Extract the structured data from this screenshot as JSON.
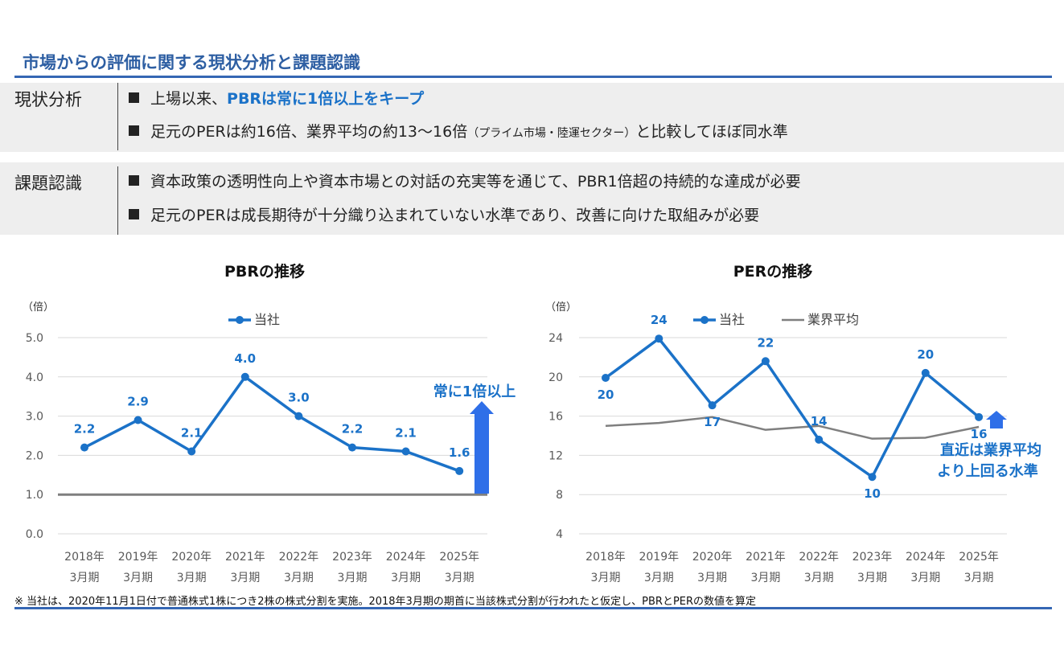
{
  "title": "市場からの評価に関する現状分析と課題認識",
  "sections": [
    {
      "label": "現状分析",
      "bullets": [
        {
          "pre": "上場以来、",
          "highlight": "PBRは常に1倍以上をキープ",
          "post": "",
          "small": "",
          "after": ""
        },
        {
          "pre": "足元のPERは約16倍、業界平均の約13〜16倍",
          "highlight": "",
          "post": "",
          "small": "（プライム市場・陸運セクター）",
          "after": "と比較してほぼ同水準"
        }
      ]
    },
    {
      "label": "課題認識",
      "bullets": [
        {
          "pre": "資本政策の透明性向上や資本市場との対話の充実等を通じて、PBR1倍超の持続的な達成が必要",
          "highlight": "",
          "post": "",
          "small": "",
          "after": ""
        },
        {
          "pre": "足元のPERは成長期待が十分織り込まれていない水準であり、改善に向けた取組みが必要",
          "highlight": "",
          "post": "",
          "small": "",
          "after": ""
        }
      ]
    }
  ],
  "chart_data": [
    {
      "type": "line",
      "title": "PBRの推移",
      "unit": "（倍）",
      "categories": [
        [
          "2018年",
          "3月期"
        ],
        [
          "2019年",
          "3月期"
        ],
        [
          "2020年",
          "3月期"
        ],
        [
          "2021年",
          "3月期"
        ],
        [
          "2022年",
          "3月期"
        ],
        [
          "2023年",
          "3月期"
        ],
        [
          "2024年",
          "3月期"
        ],
        [
          "2025年",
          "3月期"
        ]
      ],
      "yticks": [
        "0.0",
        "1.0",
        "2.0",
        "3.0",
        "4.0",
        "5.0"
      ],
      "ylim": [
        0,
        5
      ],
      "series": [
        {
          "name": "当社",
          "values": [
            2.2,
            2.9,
            2.1,
            4.0,
            3.0,
            2.2,
            2.1,
            1.6
          ],
          "labels": [
            "2.2",
            "2.9",
            "2.1",
            "4.0",
            "3.0",
            "2.2",
            "2.1",
            "1.6"
          ],
          "color": "#1b72c8"
        }
      ],
      "reference_line": {
        "value": 1.0,
        "color": "#7f7f7f"
      },
      "annotation": "常に1倍以上",
      "legend_position": "top"
    },
    {
      "type": "line",
      "title": "PERの推移",
      "unit": "（倍）",
      "categories": [
        [
          "2018年",
          "3月期"
        ],
        [
          "2019年",
          "3月期"
        ],
        [
          "2020年",
          "3月期"
        ],
        [
          "2021年",
          "3月期"
        ],
        [
          "2022年",
          "3月期"
        ],
        [
          "2023年",
          "3月期"
        ],
        [
          "2024年",
          "3月期"
        ],
        [
          "2025年",
          "3月期"
        ]
      ],
      "yticks": [
        "4",
        "8",
        "12",
        "16",
        "20",
        "24"
      ],
      "ylim": [
        4,
        24
      ],
      "series": [
        {
          "name": "当社",
          "values": [
            19.9,
            23.9,
            17.1,
            21.6,
            13.6,
            9.8,
            20.4,
            15.9
          ],
          "labels": [
            "20",
            "24",
            "17",
            "22",
            "14",
            "10",
            "20",
            "16"
          ],
          "color": "#1b72c8"
        },
        {
          "name": "業界平均",
          "values": [
            15.0,
            15.3,
            15.9,
            14.6,
            15.0,
            13.7,
            13.8,
            14.9
          ],
          "color": "#7f7f7f"
        }
      ],
      "annotation": [
        "直近は業界平均",
        "より上回る水準"
      ],
      "legend_position": "top"
    }
  ],
  "note": "※ 当社は、2020年11月1日付で普通株式1株につき2株の株式分割を実施。2018年3月期の期首に当該株式分割が行われたと仮定し、PBRとPERの数値を算定"
}
